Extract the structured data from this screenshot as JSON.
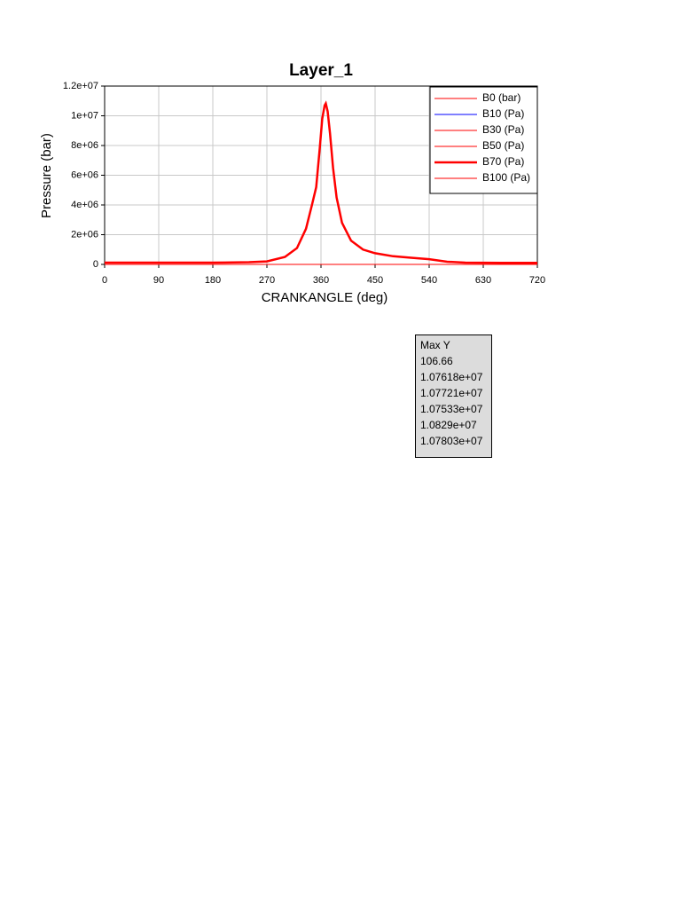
{
  "chart_data": {
    "type": "line",
    "title": "Layer_1",
    "xlabel": "CRANKANGLE (deg)",
    "ylabel": "Pressure (bar)",
    "x": [
      0,
      60,
      120,
      180,
      240,
      270,
      300,
      320,
      335,
      345,
      352,
      358,
      362,
      366,
      368,
      371,
      375,
      380,
      386,
      395,
      410,
      430,
      450,
      480,
      510,
      540,
      570,
      600,
      660,
      720
    ],
    "series": [
      {
        "name": "B0 (bar)",
        "color": "#ff0000",
        "line_width": 1,
        "values": [
          1.2,
          1.2,
          1.2,
          1.2,
          1.5,
          2,
          5,
          11,
          24,
          40,
          52,
          78,
          98,
          106,
          106.66,
          103,
          88,
          65,
          45,
          28,
          16,
          10,
          7.5,
          5.5,
          4.5,
          3.5,
          1.8,
          1.2,
          1.1,
          1.1
        ]
      },
      {
        "name": "B10 (Pa)",
        "color": "#0000ff",
        "line_width": 1,
        "values": [
          120000,
          120000,
          120000,
          120000,
          150000,
          200000,
          500000,
          1100000,
          2400000,
          4000000,
          5200000,
          7800000,
          9800000,
          10650000,
          10761800,
          10250000,
          8800000,
          6500000,
          4500000,
          2800000,
          1600000,
          1000000,
          750000,
          550000,
          450000,
          350000,
          180000,
          120000,
          110000,
          110000
        ]
      },
      {
        "name": "B30 (Pa)",
        "color": "#ff0000",
        "line_width": 1,
        "values": [
          120000,
          120000,
          120000,
          120000,
          150000,
          200000,
          500000,
          1100000,
          2400000,
          4000000,
          5200000,
          7800000,
          9800000,
          10660000,
          10772100,
          10260000,
          8800000,
          6500000,
          4500000,
          2800000,
          1600000,
          1000000,
          750000,
          550000,
          450000,
          350000,
          180000,
          120000,
          110000,
          110000
        ]
      },
      {
        "name": "B50 (Pa)",
        "color": "#ff0000",
        "line_width": 1,
        "values": [
          120000,
          120000,
          120000,
          120000,
          150000,
          200000,
          500000,
          1100000,
          2400000,
          4000000,
          5200000,
          7800000,
          9800000,
          10640000,
          10753300,
          10240000,
          8800000,
          6500000,
          4500000,
          2800000,
          1600000,
          1000000,
          750000,
          550000,
          450000,
          350000,
          180000,
          120000,
          110000,
          110000
        ]
      },
      {
        "name": "B70 (Pa)",
        "color": "#ff0000",
        "line_width": 2.5,
        "values": [
          120000,
          120000,
          120000,
          120000,
          150000,
          200000,
          500000,
          1100000,
          2400000,
          4000000,
          5200000,
          7800000,
          9800000,
          10700000,
          10829000,
          10300000,
          8800000,
          6500000,
          4500000,
          2800000,
          1600000,
          1000000,
          750000,
          550000,
          450000,
          350000,
          180000,
          120000,
          110000,
          110000
        ]
      },
      {
        "name": "B100 (Pa)",
        "color": "#ff0000",
        "line_width": 1,
        "values": [
          120000,
          120000,
          120000,
          120000,
          150000,
          200000,
          500000,
          1100000,
          2400000,
          4000000,
          5200000,
          7800000,
          9800000,
          10670000,
          10780300,
          10270000,
          8800000,
          6500000,
          4500000,
          2800000,
          1600000,
          1000000,
          750000,
          550000,
          450000,
          350000,
          180000,
          120000,
          110000,
          110000
        ]
      }
    ],
    "xlim": [
      0,
      720
    ],
    "xticks": [
      0,
      90,
      180,
      270,
      360,
      450,
      540,
      630,
      720
    ],
    "ylim": [
      0,
      12000000
    ],
    "yticks": [
      0,
      {
        "value": 2000000,
        "label": "2e+06"
      },
      {
        "value": 4000000,
        "label": "4e+06"
      },
      {
        "value": 6000000,
        "label": "6e+06"
      },
      {
        "value": 8000000,
        "label": "8e+06"
      },
      {
        "value": 10000000,
        "label": "1e+07"
      },
      {
        "value": 12000000,
        "label": "1.2e+07"
      }
    ],
    "grid": true,
    "legend": "upper right"
  },
  "max_y_box": {
    "title": "Max Y",
    "values": [
      "106.66",
      "1.07618e+07",
      "1.07721e+07",
      "1.07533e+07",
      "1.0829e+07",
      "1.07803e+07"
    ]
  }
}
